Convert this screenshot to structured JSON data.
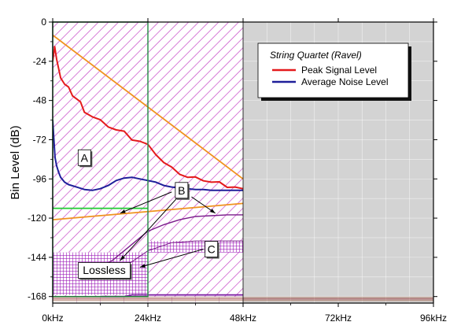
{
  "chart_data": {
    "type": "line",
    "xlabel": "",
    "ylabel": "Bin Level (dB)",
    "x_tick_labels": [
      "0kHz",
      "24kHz",
      "48kHz",
      "72kHz",
      "96kHz"
    ],
    "x_ticks_khz": [
      0,
      24,
      48,
      72,
      96
    ],
    "xlim_khz": [
      0,
      96
    ],
    "y_ticks": [
      0,
      -24,
      -48,
      -72,
      -96,
      -120,
      -144,
      -168
    ],
    "ylim": [
      -172,
      0
    ],
    "grid": true,
    "legend": {
      "title": "String Quartet (Ravel)",
      "placement": "top-right",
      "entries": [
        {
          "label": "Peak Signal Level",
          "color": "#e41a1c"
        },
        {
          "label": "Average Noise Level",
          "color": "#1f1f9a"
        }
      ]
    },
    "series": [
      {
        "name": "Peak Signal Level",
        "color": "#e41a1c",
        "x_khz": [
          0,
          0.5,
          1,
          2,
          3,
          4,
          5,
          6,
          7,
          8,
          10,
          12,
          14,
          16,
          18,
          20,
          22,
          24,
          26,
          28,
          30,
          32,
          34,
          36,
          38,
          40,
          42,
          44,
          46,
          48
        ],
        "values": [
          -24,
          -15,
          -24,
          -33,
          -38,
          -41,
          -44,
          -47,
          -50,
          -54,
          -58,
          -61,
          -63,
          -66,
          -68,
          -71,
          -73,
          -76,
          -80,
          -86,
          -90,
          -92,
          -95,
          -96,
          -96,
          -98,
          -99,
          -100,
          -101,
          -102
        ]
      },
      {
        "name": "Average Noise Level",
        "color": "#1f1f9a",
        "x_khz": [
          0,
          0.3,
          0.6,
          1,
          1.5,
          2,
          3,
          4,
          6,
          8,
          10,
          12,
          14,
          16,
          18,
          20,
          22,
          24,
          26,
          28,
          30,
          32,
          34,
          36,
          38,
          40,
          42,
          44,
          46,
          48
        ],
        "values": [
          -60,
          -72,
          -83,
          -88,
          -92,
          -95,
          -98,
          -99.5,
          -101,
          -102.5,
          -103,
          -102,
          -100,
          -97,
          -95.5,
          -95,
          -96,
          -97,
          -98,
          -100,
          -101,
          -101.5,
          -102,
          -102.5,
          -102.5,
          -103,
          -103,
          -103,
          -103,
          -103
        ]
      }
    ],
    "reference_lines": [
      {
        "color": "#f0921e",
        "x_khz": [
          0,
          48
        ],
        "values": [
          -8,
          -96
        ]
      },
      {
        "color": "#f0921e",
        "x_khz": [
          0,
          48
        ],
        "values": [
          -121,
          -111
        ]
      },
      {
        "color": "#22cc33",
        "x_khz": [
          0,
          24
        ],
        "values": [
          -114,
          -114
        ]
      },
      {
        "color": "#7a1aa0",
        "x_khz": [
          12,
          16,
          18,
          20,
          24,
          30,
          36,
          42,
          48
        ],
        "values": [
          -168,
          -168,
          -168,
          -167,
          -167,
          -167,
          -167,
          -167,
          -167
        ]
      }
    ],
    "region_labels": [
      {
        "text": "A",
        "x_khz": 8,
        "y_db": -83
      },
      {
        "text": "B",
        "x_khz": 32.5,
        "y_db": -103
      },
      {
        "text": "C",
        "x_khz": 40,
        "y_db": -139
      },
      {
        "text": "Lossless",
        "x_khz": 13,
        "y_db": -152
      }
    ],
    "colors": {
      "hatch": "#c43cc4",
      "crosshatch": "#9c1cb8",
      "grey_band": "#d3d3d3",
      "frame_green": "#2f8f4f",
      "boundary_purple": "#7a1a8a"
    }
  }
}
